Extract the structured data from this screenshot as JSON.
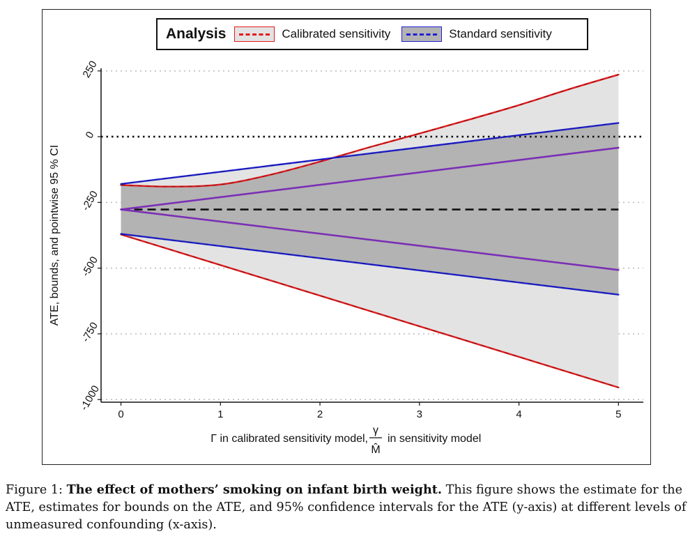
{
  "chart_data": {
    "type": "line",
    "xlabel": {
      "main": "Γ in calibrated sensitivity model,",
      "frac_num": "γ",
      "frac_den": "M̂",
      "tail": "in sensitivity model"
    },
    "ylabel": "ATE, bounds, and pointwise 95 % CI",
    "xlim": [
      -0.2,
      5.25
    ],
    "ylim": [
      -1010,
      260
    ],
    "x_ticks": [
      0,
      1,
      2,
      3,
      4,
      5
    ],
    "x_tick_labels": [
      "0",
      "1",
      "2",
      "3",
      "4",
      "5"
    ],
    "y_ticks": [
      250,
      0,
      -250,
      -500,
      -750,
      -1000
    ],
    "y_tick_labels": [
      "250",
      "0",
      "-250",
      "-500",
      "-750",
      "-1000"
    ],
    "gridlines_y": [
      250,
      -250,
      -500,
      -750,
      -1000
    ],
    "zero_line": 0,
    "ate_estimate": -277,
    "legend": {
      "title": "Analysis",
      "entries": [
        {
          "label": "Calibrated sensitivity",
          "color": "#e31a1c",
          "fill": "#e3e3e3"
        },
        {
          "label": "Standard sensitivity",
          "color": "#1f1fd6",
          "fill": "#b3b3b3"
        }
      ]
    },
    "series": [
      {
        "name": "Calibrated sensitivity upper CI",
        "color": "#e31a1c",
        "x": [
          0,
          0.5,
          1,
          1.5,
          2,
          2.5,
          3,
          3.5,
          4,
          4.5,
          5
        ],
        "y": [
          -184,
          -190,
          -182,
          -145,
          -95,
          -40,
          12,
          65,
          120,
          180,
          236
        ]
      },
      {
        "name": "Calibrated sensitivity lower CI",
        "color": "#e31a1c",
        "x": [
          0,
          5
        ],
        "y": [
          -372,
          -954
        ]
      },
      {
        "name": "Standard sensitivity upper CI",
        "color": "#1f1fd6",
        "x": [
          0,
          5
        ],
        "y": [
          -180,
          52
        ]
      },
      {
        "name": "Standard sensitivity lower CI",
        "color": "#1f1fd6",
        "x": [
          0,
          5
        ],
        "y": [
          -370,
          -601
        ]
      },
      {
        "name": "Upper bound",
        "color": "#7b2fb5",
        "x": [
          0,
          5
        ],
        "y": [
          -277,
          -42
        ]
      },
      {
        "name": "Lower bound",
        "color": "#7b2fb5",
        "x": [
          0,
          5
        ],
        "y": [
          -277,
          -507
        ]
      }
    ],
    "colors": {
      "grid": "#bdbdbd",
      "axis": "#111111",
      "estimate": "#111111"
    }
  },
  "caption": {
    "label": "Figure 1:",
    "title": "The effect of mothers’ smoking on infant birth weight.",
    "text": "This figure shows the estimate for the ATE, estimates for bounds on the ATE, and 95% confidence intervals for the ATE (y-axis) at different levels of unmeasured confounding (x-axis)."
  }
}
